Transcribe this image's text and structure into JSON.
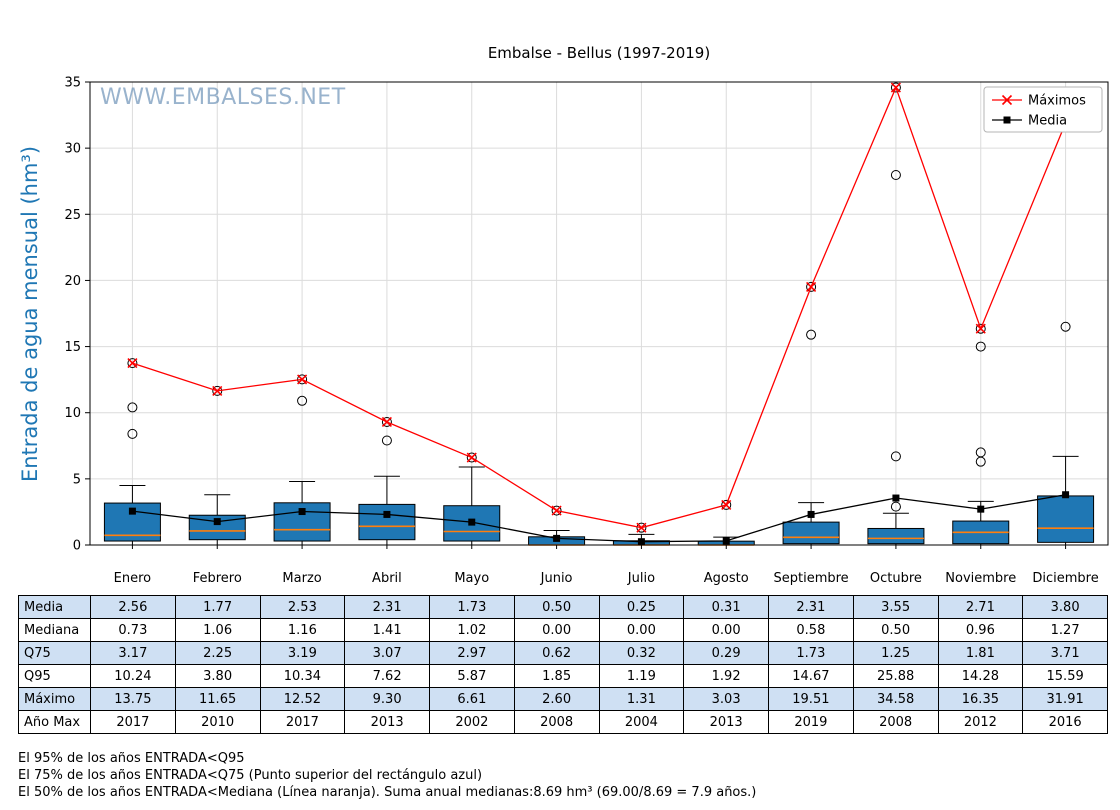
{
  "title": "Embalse - Bellus (1997-2019)",
  "watermark": "WWW.EMBALSES.NET",
  "chart_data": {
    "type": "boxplot+line",
    "ylabel": "Entrada de agua mensual (hm³)",
    "ylim": [
      0,
      35
    ],
    "yticks": [
      0,
      5,
      10,
      15,
      20,
      25,
      30,
      35
    ],
    "grid": true,
    "legend_position": "upper right",
    "box_color": "#1f77b4",
    "median_color": "#ff7f0e",
    "categories": [
      "Enero",
      "Febrero",
      "Marzo",
      "Abril",
      "Mayo",
      "Junio",
      "Julio",
      "Agosto",
      "Septiembre",
      "Octubre",
      "Noviembre",
      "Diciembre"
    ],
    "series": [
      {
        "name": "Máximos",
        "color": "#ff0000",
        "marker": "x",
        "values": [
          13.75,
          11.65,
          12.52,
          9.3,
          6.61,
          2.6,
          1.31,
          3.03,
          19.51,
          34.58,
          16.35,
          31.91
        ]
      },
      {
        "name": "Media",
        "color": "#000000",
        "marker": "square",
        "values": [
          2.56,
          1.77,
          2.53,
          2.31,
          1.73,
          0.5,
          0.25,
          0.31,
          2.31,
          3.55,
          2.71,
          3.8
        ]
      }
    ],
    "boxes": [
      {
        "whislo": 0.0,
        "q1": 0.3,
        "med": 0.73,
        "q3": 3.17,
        "whishi": 4.5,
        "fliers": [
          8.4,
          10.4,
          13.75
        ]
      },
      {
        "whislo": 0.0,
        "q1": 0.4,
        "med": 1.06,
        "q3": 2.25,
        "whishi": 3.8,
        "fliers": [
          11.65
        ]
      },
      {
        "whislo": 0.0,
        "q1": 0.3,
        "med": 1.16,
        "q3": 3.19,
        "whishi": 4.8,
        "fliers": [
          10.9,
          12.52
        ]
      },
      {
        "whislo": 0.0,
        "q1": 0.4,
        "med": 1.41,
        "q3": 3.07,
        "whishi": 5.2,
        "fliers": [
          7.9,
          9.3
        ]
      },
      {
        "whislo": 0.0,
        "q1": 0.3,
        "med": 1.02,
        "q3": 2.97,
        "whishi": 5.9,
        "fliers": [
          6.61
        ]
      },
      {
        "whislo": 0.0,
        "q1": 0.0,
        "med": 0.0,
        "q3": 0.62,
        "whishi": 1.1,
        "fliers": [
          2.6
        ]
      },
      {
        "whislo": 0.0,
        "q1": 0.0,
        "med": 0.0,
        "q3": 0.32,
        "whishi": 0.8,
        "fliers": [
          1.31
        ]
      },
      {
        "whislo": 0.0,
        "q1": 0.0,
        "med": 0.0,
        "q3": 0.29,
        "whishi": 0.6,
        "fliers": [
          3.03
        ]
      },
      {
        "whislo": 0.0,
        "q1": 0.1,
        "med": 0.58,
        "q3": 1.73,
        "whishi": 3.2,
        "fliers": [
          15.9,
          19.51
        ]
      },
      {
        "whislo": 0.0,
        "q1": 0.1,
        "med": 0.5,
        "q3": 1.25,
        "whishi": 2.4,
        "fliers": [
          2.9,
          6.7,
          27.97,
          34.58
        ]
      },
      {
        "whislo": 0.0,
        "q1": 0.1,
        "med": 0.96,
        "q3": 1.81,
        "whishi": 3.3,
        "fliers": [
          6.3,
          7.0,
          15.0,
          16.35
        ]
      },
      {
        "whislo": 0.0,
        "q1": 0.2,
        "med": 1.27,
        "q3": 3.71,
        "whishi": 6.7,
        "fliers": [
          16.5,
          31.91
        ]
      }
    ]
  },
  "table": {
    "rows": [
      {
        "label": "Media",
        "values": [
          "2.56",
          "1.77",
          "2.53",
          "2.31",
          "1.73",
          "0.50",
          "0.25",
          "0.31",
          "2.31",
          "3.55",
          "2.71",
          "3.80"
        ]
      },
      {
        "label": "Mediana",
        "values": [
          "0.73",
          "1.06",
          "1.16",
          "1.41",
          "1.02",
          "0.00",
          "0.00",
          "0.00",
          "0.58",
          "0.50",
          "0.96",
          "1.27"
        ]
      },
      {
        "label": "Q75",
        "values": [
          "3.17",
          "2.25",
          "3.19",
          "3.07",
          "2.97",
          "0.62",
          "0.32",
          "0.29",
          "1.73",
          "1.25",
          "1.81",
          "3.71"
        ]
      },
      {
        "label": "Q95",
        "values": [
          "10.24",
          "3.80",
          "10.34",
          "7.62",
          "5.87",
          "1.85",
          "1.19",
          "1.92",
          "14.67",
          "25.88",
          "14.28",
          "15.59"
        ]
      },
      {
        "label": "Máximo",
        "values": [
          "13.75",
          "11.65",
          "12.52",
          "9.30",
          "6.61",
          "2.60",
          "1.31",
          "3.03",
          "19.51",
          "34.58",
          "16.35",
          "31.91"
        ]
      },
      {
        "label": "Año Max",
        "values": [
          "2017",
          "2010",
          "2017",
          "2013",
          "2002",
          "2008",
          "2004",
          "2013",
          "2019",
          "2008",
          "2012",
          "2016"
        ]
      }
    ]
  },
  "footnotes": [
    "El 95% de los años ENTRADA<Q95",
    "El 75% de los años ENTRADA<Q75 (Punto superior del rectángulo azul)",
    "El 50% de los años ENTRADA<Mediana (Línea naranja). Suma anual medianas:8.69 hm³ (69.00/8.69 = 7.9 años.)"
  ]
}
